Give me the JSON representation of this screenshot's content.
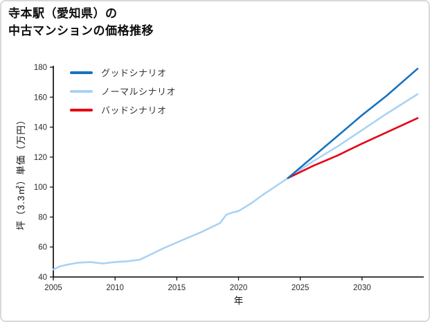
{
  "title_lines": [
    "寺本駅（愛知県）の",
    "中古マンションの価格推移"
  ],
  "chart_data": {
    "type": "line",
    "title": "寺本駅（愛知県）の中古マンションの価格推移",
    "xlabel": "年",
    "ylabel": "坪（3.3㎡）単価（万円）",
    "xlim": [
      2005,
      2035
    ],
    "ylim": [
      40,
      180
    ],
    "xticks": [
      2005,
      2010,
      2015,
      2020,
      2025,
      2030
    ],
    "yticks": [
      40,
      60,
      80,
      100,
      120,
      140,
      160,
      180
    ],
    "grid": false,
    "legend_position": "upper-left-inside",
    "series": [
      {
        "name": "グッドシナリオ",
        "color": "#1772bf",
        "x": [
          2024,
          2026,
          2028,
          2030,
          2032,
          2034.5
        ],
        "values": [
          106,
          120,
          134,
          148,
          161,
          179
        ]
      },
      {
        "name": "ノーマルシナリオ",
        "color": "#a9d2f3",
        "x": [
          2005,
          2005.5,
          2006,
          2007,
          2008,
          2009,
          2010,
          2011,
          2012,
          2013,
          2014,
          2015,
          2016,
          2017,
          2018,
          2018.5,
          2019,
          2019.5,
          2020,
          2021,
          2022,
          2023,
          2024,
          2026,
          2028,
          2030,
          2032,
          2034.5
        ],
        "values": [
          45,
          47,
          48,
          49.5,
          50,
          49,
          50,
          50.5,
          51.5,
          55.5,
          59.5,
          63,
          66.5,
          70,
          74,
          76,
          81.5,
          83,
          84,
          89,
          95,
          100.5,
          106,
          117,
          127,
          138,
          149,
          162
        ]
      },
      {
        "name": "バッドシナリオ",
        "color": "#e60012",
        "x": [
          2024,
          2026,
          2028,
          2030,
          2032,
          2034.5
        ],
        "values": [
          106,
          114,
          121,
          129,
          136.5,
          146
        ]
      }
    ]
  },
  "axis": {
    "color": "#000000",
    "tick_label_color": "#2b2b2b"
  }
}
